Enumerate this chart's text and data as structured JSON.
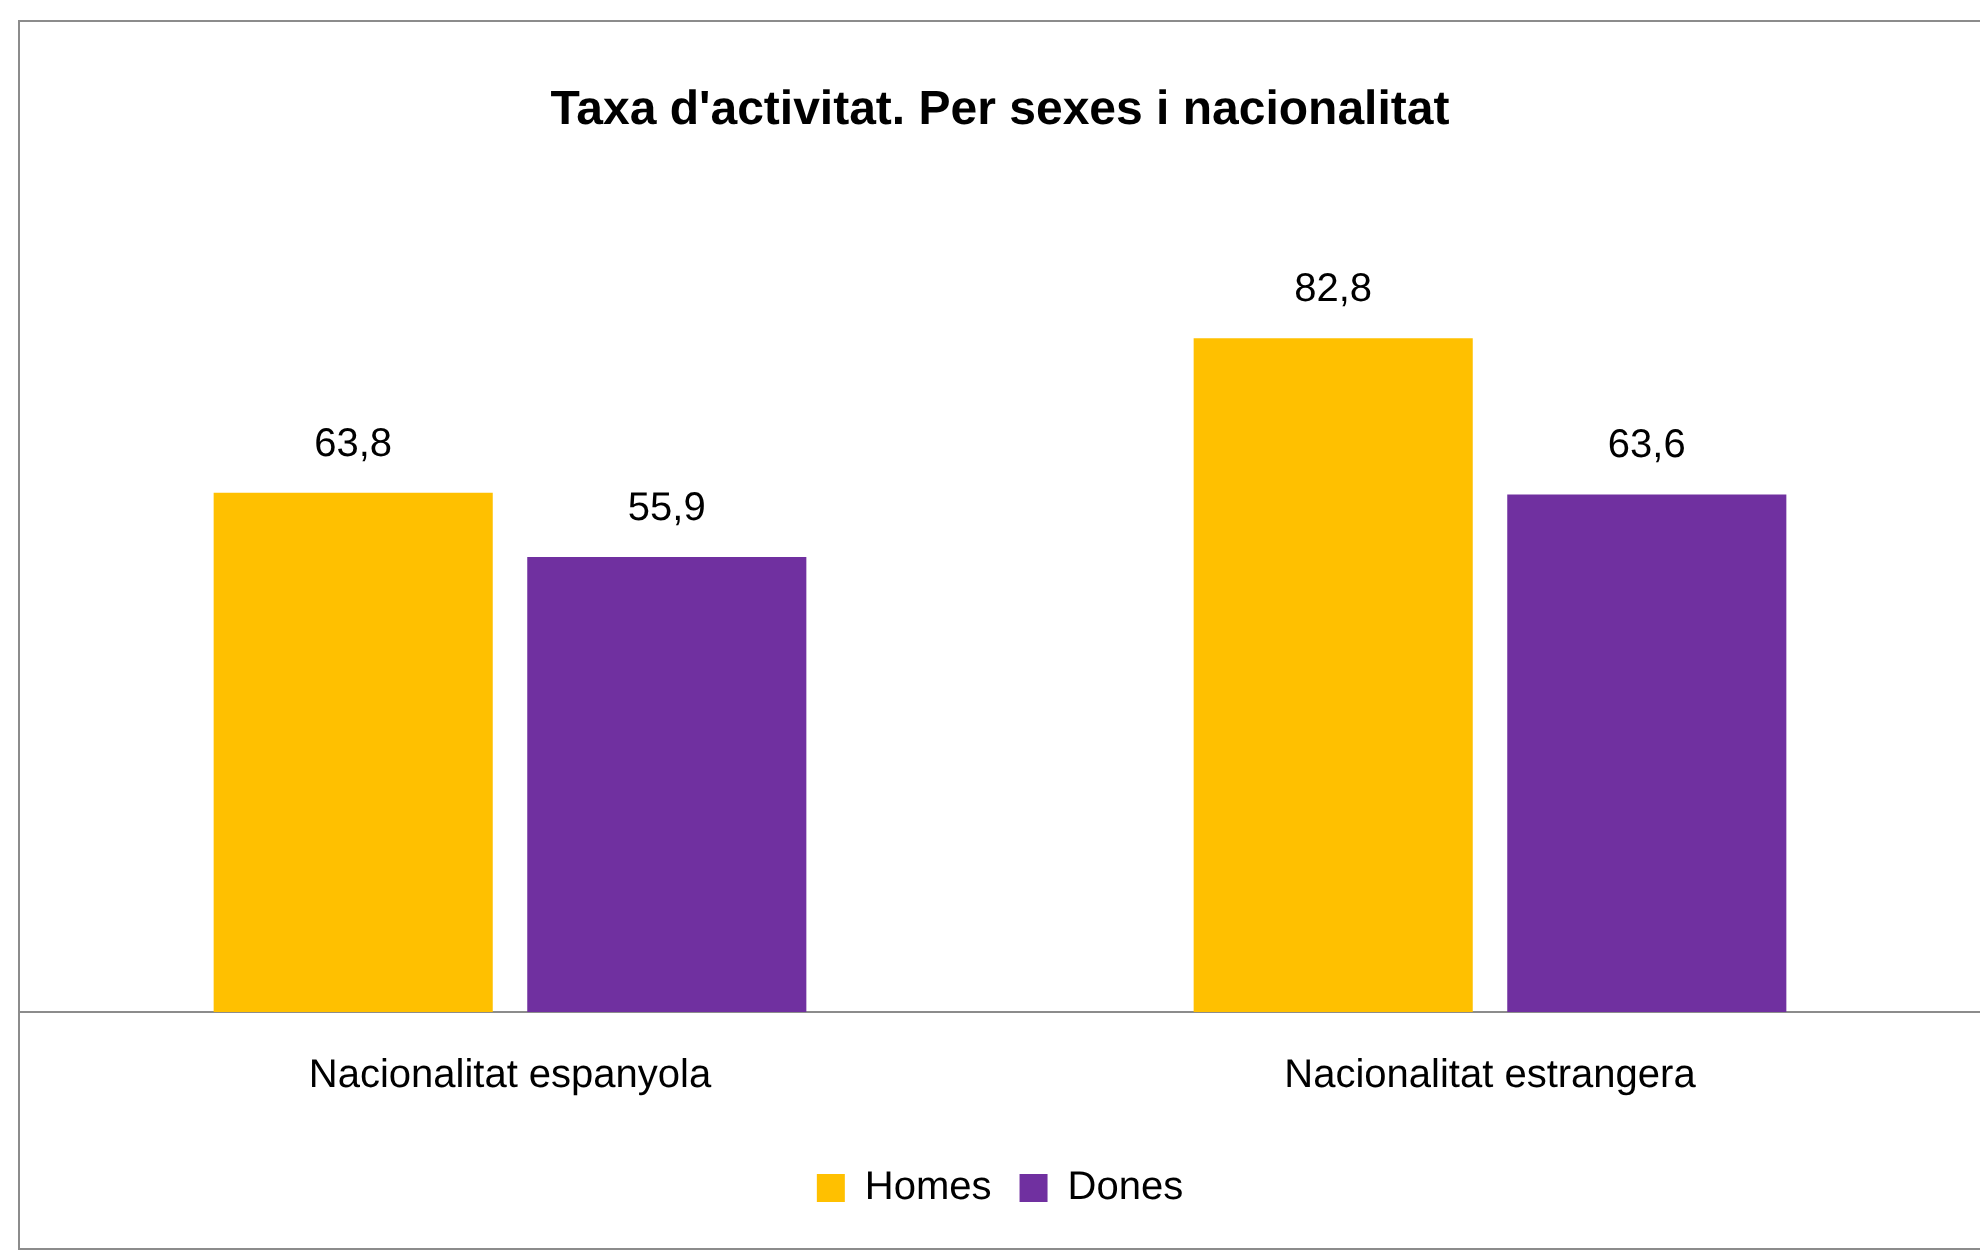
{
  "chart_data": {
    "type": "bar",
    "title": "Taxa d'activitat. Per sexes i nacionalitat",
    "categories": [
      "Nacionalitat espanyola",
      "Nacionalitat estrangera"
    ],
    "series": [
      {
        "name": "Homes",
        "color": "#ffc000",
        "values": [
          63.8,
          82.8
        ],
        "value_labels": [
          "63,8",
          "82,8"
        ]
      },
      {
        "name": "Dones",
        "color": "#7030a0",
        "values": [
          55.9,
          63.6
        ],
        "value_labels": [
          "55,9",
          "63,6"
        ]
      }
    ],
    "legend": "bottom",
    "grid": false
  }
}
